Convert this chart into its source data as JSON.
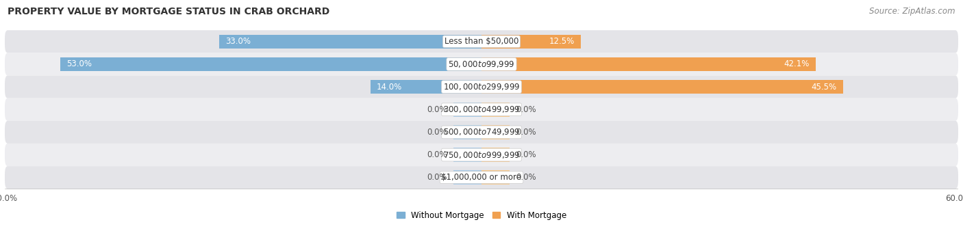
{
  "title": "PROPERTY VALUE BY MORTGAGE STATUS IN CRAB ORCHARD",
  "source": "Source: ZipAtlas.com",
  "categories": [
    "Less than $50,000",
    "$50,000 to $99,999",
    "$100,000 to $299,999",
    "$300,000 to $499,999",
    "$500,000 to $749,999",
    "$750,000 to $999,999",
    "$1,000,000 or more"
  ],
  "without_mortgage": [
    33.0,
    53.0,
    14.0,
    0.0,
    0.0,
    0.0,
    0.0
  ],
  "with_mortgage": [
    12.5,
    42.1,
    45.5,
    0.0,
    0.0,
    0.0,
    0.0
  ],
  "max_val": 60.0,
  "bar_color_without": "#7bafd4",
  "bar_color_with": "#f0a050",
  "bar_color_without_zero": "#aacce8",
  "bar_color_with_zero": "#f5c990",
  "bg_row_color": "#e4e4e8",
  "bg_row_color_alt": "#ededf0",
  "title_fontsize": 10,
  "source_fontsize": 8.5,
  "tick_fontsize": 8.5,
  "label_fontsize": 8.5,
  "cat_fontsize": 8.5,
  "legend_fontsize": 8.5,
  "bar_height": 0.62,
  "zero_stub": 3.5,
  "figsize": [
    14.06,
    3.41
  ],
  "dpi": 100
}
